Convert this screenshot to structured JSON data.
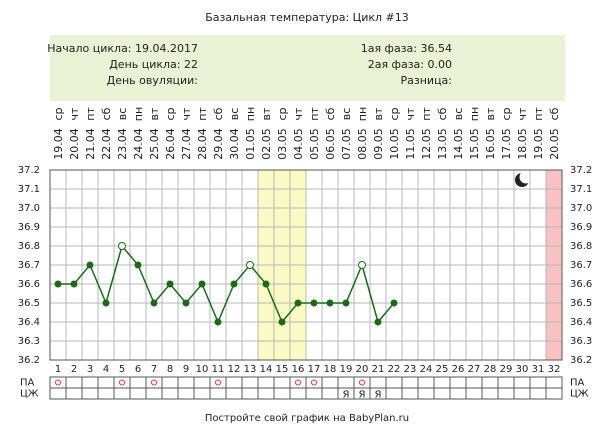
{
  "chart_data": {
    "type": "line",
    "title": "Базальная температура: Цикл #13",
    "info_left": [
      "Начало цикла: 19.04.2017",
      "День цикла: 22",
      "День овуляции:"
    ],
    "info_right": [
      "1ая фаза: 36.54",
      "2ая фаза: 0.00",
      "Разница:"
    ],
    "weekdays": [
      "ср",
      "чт",
      "пт",
      "сб",
      "вс",
      "пн",
      "вт",
      "ср",
      "чт",
      "пт",
      "сб",
      "вс",
      "пн",
      "вт",
      "ср",
      "чт",
      "пт",
      "сб",
      "вс",
      "пн",
      "вт",
      "ср",
      "чт",
      "пт",
      "сб",
      "вс",
      "пн",
      "вт",
      "ср",
      "чт",
      "пт",
      "сб"
    ],
    "dates": [
      "19.04",
      "20.04",
      "21.04",
      "22.04",
      "23.04",
      "24.04",
      "25.04",
      "26.04",
      "27.04",
      "28.04",
      "29.04",
      "30.04",
      "01.05",
      "02.05",
      "03.05",
      "04.05",
      "05.05",
      "06.05",
      "07.05",
      "08.05",
      "09.05",
      "10.05",
      "11.05",
      "12.05",
      "13.05",
      "14.05",
      "15.05",
      "16.05",
      "17.05",
      "18.05",
      "19.05",
      "20.05"
    ],
    "categories": [
      1,
      2,
      3,
      4,
      5,
      6,
      7,
      8,
      9,
      10,
      11,
      12,
      13,
      14,
      15,
      16,
      17,
      18,
      19,
      20,
      21,
      22,
      23,
      24,
      25,
      26,
      27,
      28,
      29,
      30,
      31,
      32
    ],
    "series": [
      {
        "name": "Температура",
        "color": "#1a6a1a",
        "values": [
          36.6,
          36.6,
          36.7,
          36.5,
          36.8,
          36.7,
          36.5,
          36.6,
          36.5,
          36.6,
          36.4,
          36.6,
          36.7,
          36.6,
          36.4,
          36.5,
          36.5,
          36.5,
          36.5,
          36.7,
          36.4,
          36.5,
          null,
          null,
          null,
          null,
          null,
          null,
          null,
          null,
          null,
          null
        ],
        "point_styles": [
          "filled",
          "filled",
          "filled",
          "filled",
          "open",
          "filled",
          "filled",
          "filled",
          "filled",
          "filled",
          "filled",
          "filled",
          "open",
          "filled",
          "filled",
          "filled",
          "filled",
          "filled",
          "filled",
          "open",
          "filled",
          "filled",
          null,
          null,
          null,
          null,
          null,
          null,
          null,
          null,
          null,
          null
        ]
      }
    ],
    "ylim": [
      36.2,
      37.2
    ],
    "yticks": [
      36.2,
      36.3,
      36.4,
      36.5,
      36.6,
      36.7,
      36.8,
      36.9,
      {
        "value": 37.0,
        "label": "37.0"
      },
      37.1,
      37.2
    ],
    "grid": true,
    "highlight_bands": [
      {
        "from": 14,
        "to": 16,
        "color": "#fafac4"
      },
      {
        "from": 32,
        "to": 32,
        "color": "#f9c2c2"
      }
    ],
    "row_labels": [
      "ПА",
      "ЦЖ"
    ],
    "pa_days": [
      1,
      5,
      7,
      11,
      16,
      17,
      20
    ],
    "pa_color": "#e03030",
    "cz": [
      null,
      null,
      null,
      null,
      null,
      null,
      null,
      null,
      null,
      null,
      null,
      null,
      null,
      null,
      null,
      null,
      null,
      null,
      "Я",
      "Я",
      "Я",
      null,
      null,
      null,
      null,
      null,
      null,
      null,
      null,
      null,
      null,
      null
    ],
    "footer": "Постройте свой график на BabyPlan.ru"
  }
}
